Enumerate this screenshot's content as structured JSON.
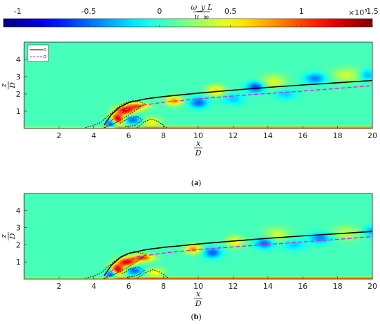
{
  "colorbar": {
    "label_num": "ω_y L",
    "label_den": "u_∞",
    "multiplier_base": "×10",
    "multiplier_exp": "5",
    "ticks": [
      "-1",
      "-0.5",
      "0",
      "0.5",
      "1",
      "1.5"
    ],
    "tick_values": [
      -1,
      -0.5,
      0,
      0.5,
      1,
      1.5
    ],
    "range": [
      -1.1,
      1.5
    ],
    "colormap": "jet"
  },
  "chart_data": [
    {
      "type": "heatmap",
      "panel": "a",
      "caption": "(a)",
      "xlabel_num": "x",
      "xlabel_den": "D",
      "ylabel_num": "z",
      "ylabel_den": "D",
      "xlim": [
        0,
        20
      ],
      "ylim": [
        0,
        5
      ],
      "x_ticks": [
        "2",
        "4",
        "6",
        "8",
        "10",
        "12",
        "14",
        "16",
        "18",
        "20"
      ],
      "x_tick_values": [
        2,
        4,
        6,
        8,
        10,
        12,
        14,
        16,
        18,
        20
      ],
      "y_ticks": [
        "1",
        "2",
        "3",
        "4"
      ],
      "y_tick_values": [
        1,
        2,
        3,
        4
      ],
      "background_value": 0.05,
      "legend": {
        "placement": "top-left",
        "entries": [
          "solid-black-line",
          "dashed-magenta-line"
        ]
      },
      "series": [
        {
          "style": "solid",
          "color": "#000000",
          "x": [
            4.6,
            5.0,
            5.5,
            6.0,
            7.0,
            8.0,
            10,
            12,
            14,
            16,
            18,
            20
          ],
          "y": [
            0.2,
            0.8,
            1.25,
            1.5,
            1.72,
            1.85,
            2.05,
            2.22,
            2.38,
            2.52,
            2.65,
            2.78
          ]
        },
        {
          "style": "dashed",
          "color": "#e020e0",
          "x": [
            4.7,
            5.2,
            5.7,
            6.5,
            8.0,
            10,
            12,
            14,
            16,
            18,
            20
          ],
          "y": [
            0.15,
            0.65,
            1.05,
            1.3,
            1.52,
            1.72,
            1.88,
            2.03,
            2.17,
            2.32,
            2.48
          ]
        }
      ],
      "features": [
        {
          "x": 5.3,
          "y": 0.55,
          "v": 1.4,
          "sx": 0.45,
          "sy": 0.3
        },
        {
          "x": 5.8,
          "y": 1.05,
          "v": 1.2,
          "sx": 0.55,
          "sy": 0.25
        },
        {
          "x": 5.0,
          "y": 0.35,
          "v": -1.0,
          "sx": 0.3,
          "sy": 0.3
        },
        {
          "x": 6.5,
          "y": 1.3,
          "v": 0.9,
          "sx": 0.6,
          "sy": 0.2
        },
        {
          "x": 6.2,
          "y": 0.5,
          "v": -0.6,
          "sx": 0.5,
          "sy": 0.25
        },
        {
          "x": 7.3,
          "y": 0.4,
          "v": 0.5,
          "sx": 0.5,
          "sy": 0.25
        },
        {
          "x": 8.6,
          "y": 1.6,
          "v": 0.8,
          "sx": 0.45,
          "sy": 0.25
        },
        {
          "x": 10.0,
          "y": 1.5,
          "v": -0.6,
          "sx": 0.5,
          "sy": 0.3
        },
        {
          "x": 11.0,
          "y": 2.2,
          "v": 0.6,
          "sx": 0.5,
          "sy": 0.3
        },
        {
          "x": 12.0,
          "y": 1.7,
          "v": -0.3,
          "sx": 0.6,
          "sy": 0.3
        },
        {
          "x": 13.3,
          "y": 2.4,
          "v": -0.7,
          "sx": 0.5,
          "sy": 0.3
        },
        {
          "x": 14.3,
          "y": 2.7,
          "v": 0.4,
          "sx": 0.7,
          "sy": 0.4
        },
        {
          "x": 15.0,
          "y": 2.0,
          "v": -0.3,
          "sx": 0.6,
          "sy": 0.3
        },
        {
          "x": 16.7,
          "y": 2.9,
          "v": -0.5,
          "sx": 0.6,
          "sy": 0.3
        },
        {
          "x": 18.5,
          "y": 3.1,
          "v": 0.35,
          "sx": 0.8,
          "sy": 0.4
        },
        {
          "x": 19.7,
          "y": 3.1,
          "v": -0.4,
          "sx": 0.4,
          "sy": 0.3
        }
      ],
      "contours": [
        [
          [
            3.5,
            0.05
          ],
          [
            3.9,
            0.15
          ],
          [
            4.4,
            0.35
          ],
          [
            5.0,
            0.9
          ],
          [
            5.6,
            1.4
          ],
          [
            6.3,
            1.65
          ],
          [
            6.9,
            1.45
          ],
          [
            6.4,
            1.05
          ],
          [
            5.8,
            0.65
          ],
          [
            5.2,
            0.3
          ],
          [
            4.6,
            0.05
          ]
        ],
        [
          [
            6.5,
            0.05
          ],
          [
            6.9,
            0.4
          ],
          [
            7.3,
            0.55
          ],
          [
            7.7,
            0.4
          ],
          [
            8.2,
            0.05
          ]
        ],
        [
          [
            5.5,
            0.3
          ],
          [
            6.0,
            0.6
          ],
          [
            6.5,
            0.7
          ],
          [
            6.8,
            0.5
          ],
          [
            6.4,
            0.2
          ],
          [
            5.8,
            0.1
          ]
        ]
      ],
      "wall_band": {
        "y_max": 0.22,
        "x_min": 0,
        "x_max_strong": 20,
        "v_upstream": 0.35,
        "v_downstream": 1.3
      }
    },
    {
      "type": "heatmap",
      "panel": "b",
      "caption": "(b)",
      "xlabel_num": "x",
      "xlabel_den": "D",
      "ylabel_num": "z",
      "ylabel_den": "D",
      "xlim": [
        0,
        20
      ],
      "ylim": [
        0,
        5
      ],
      "x_ticks": [
        "2",
        "4",
        "6",
        "8",
        "10",
        "12",
        "14",
        "16",
        "18",
        "20"
      ],
      "x_tick_values": [
        2,
        4,
        6,
        8,
        10,
        12,
        14,
        16,
        18,
        20
      ],
      "y_ticks": [
        "1",
        "2",
        "3",
        "4"
      ],
      "y_tick_values": [
        1,
        2,
        3,
        4
      ],
      "background_value": 0.05,
      "legend": {
        "placement": "none",
        "entries": []
      },
      "series": [
        {
          "style": "solid",
          "color": "#000000",
          "x": [
            4.6,
            5.0,
            5.5,
            6.0,
            7.0,
            8.0,
            10,
            12,
            14,
            16,
            18,
            20
          ],
          "y": [
            0.2,
            0.8,
            1.25,
            1.5,
            1.72,
            1.85,
            2.05,
            2.22,
            2.38,
            2.52,
            2.65,
            2.78
          ]
        },
        {
          "style": "dashed",
          "color": "#e020e0",
          "x": [
            4.7,
            5.2,
            5.7,
            6.5,
            8.0,
            10,
            12,
            14,
            16,
            18,
            20
          ],
          "y": [
            0.15,
            0.65,
            1.05,
            1.3,
            1.52,
            1.72,
            1.88,
            2.03,
            2.17,
            2.32,
            2.48
          ]
        }
      ],
      "features": [
        {
          "x": 5.3,
          "y": 0.55,
          "v": 1.4,
          "sx": 0.45,
          "sy": 0.3
        },
        {
          "x": 5.9,
          "y": 1.0,
          "v": 1.2,
          "sx": 0.55,
          "sy": 0.25
        },
        {
          "x": 5.0,
          "y": 0.35,
          "v": -1.0,
          "sx": 0.3,
          "sy": 0.3
        },
        {
          "x": 6.8,
          "y": 1.25,
          "v": 1.0,
          "sx": 0.6,
          "sy": 0.2
        },
        {
          "x": 6.3,
          "y": 0.5,
          "v": -0.6,
          "sx": 0.5,
          "sy": 0.25
        },
        {
          "x": 7.5,
          "y": 0.4,
          "v": 0.5,
          "sx": 0.5,
          "sy": 0.25
        },
        {
          "x": 9.7,
          "y": 1.75,
          "v": 0.8,
          "sx": 0.45,
          "sy": 0.25
        },
        {
          "x": 10.8,
          "y": 1.55,
          "v": -0.6,
          "sx": 0.5,
          "sy": 0.3
        },
        {
          "x": 12.1,
          "y": 2.2,
          "v": 0.5,
          "sx": 0.5,
          "sy": 0.3
        },
        {
          "x": 13.8,
          "y": 2.1,
          "v": -0.6,
          "sx": 0.5,
          "sy": 0.3
        },
        {
          "x": 14.5,
          "y": 2.6,
          "v": 0.35,
          "sx": 0.7,
          "sy": 0.4
        },
        {
          "x": 15.5,
          "y": 2.0,
          "v": -0.3,
          "sx": 0.6,
          "sy": 0.3
        },
        {
          "x": 17.0,
          "y": 2.4,
          "v": -0.5,
          "sx": 0.6,
          "sy": 0.3
        },
        {
          "x": 18.5,
          "y": 2.7,
          "v": 0.3,
          "sx": 0.8,
          "sy": 0.4
        },
        {
          "x": 19.9,
          "y": 2.8,
          "v": -0.4,
          "sx": 0.4,
          "sy": 0.3
        }
      ],
      "contours": [
        [
          [
            3.5,
            0.05
          ],
          [
            3.9,
            0.15
          ],
          [
            4.4,
            0.35
          ],
          [
            5.0,
            0.9
          ],
          [
            5.6,
            1.35
          ],
          [
            6.3,
            1.6
          ],
          [
            7.0,
            1.45
          ],
          [
            6.5,
            1.05
          ],
          [
            5.9,
            0.65
          ],
          [
            5.2,
            0.3
          ],
          [
            4.6,
            0.05
          ]
        ],
        [
          [
            6.5,
            0.05
          ],
          [
            7.0,
            0.4
          ],
          [
            7.4,
            0.55
          ],
          [
            7.8,
            0.4
          ],
          [
            8.3,
            0.05
          ]
        ],
        [
          [
            5.6,
            0.3
          ],
          [
            6.1,
            0.6
          ],
          [
            6.6,
            0.7
          ],
          [
            6.9,
            0.5
          ],
          [
            6.5,
            0.2
          ],
          [
            5.9,
            0.1
          ]
        ]
      ],
      "wall_band": {
        "y_max": 0.22,
        "x_min": 0,
        "x_max_strong": 20,
        "v_upstream": 0.35,
        "v_downstream": 1.3
      }
    }
  ]
}
